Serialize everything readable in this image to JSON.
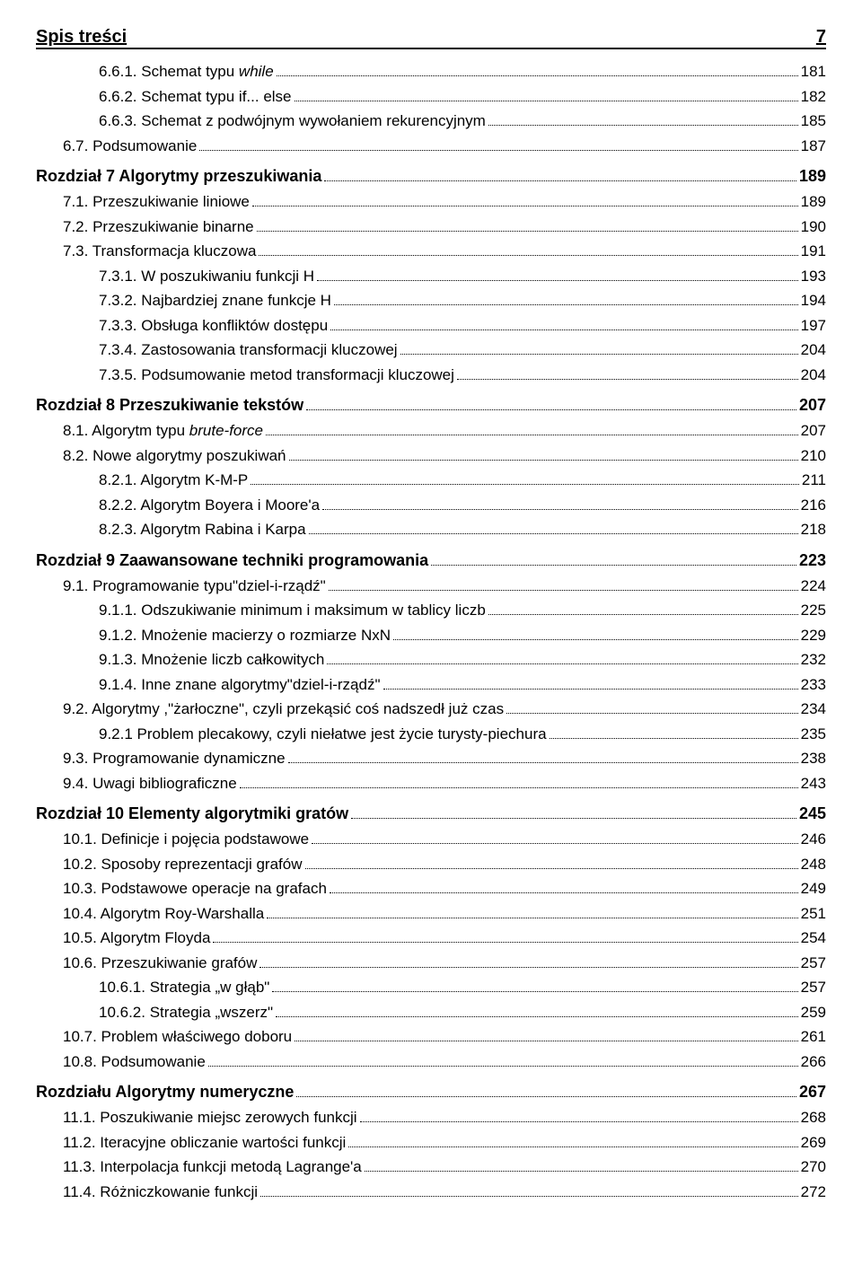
{
  "header": {
    "title": "Spis treści",
    "page": "7"
  },
  "lines": [
    {
      "indent": 1,
      "label": "6.6.1. Schemat typu <i>while</i>",
      "page": "181"
    },
    {
      "indent": 1,
      "label": "6.6.2. Schemat typu if... else",
      "page": "182"
    },
    {
      "indent": 1,
      "label": "6.6.3. Schemat z podwójnym wywołaniem rekurencyjnym",
      "page": "185"
    },
    {
      "indent": 0,
      "label": "6.7. Podsumowanie",
      "page": "187",
      "cls": "section-1"
    },
    {
      "indent": 0,
      "label": "Rozdział 7   Algorytmy przeszukiwania",
      "page": "189",
      "cls": "chapter"
    },
    {
      "indent": 0,
      "label": "7.1. Przeszukiwanie liniowe",
      "page": "189",
      "cls": "section-1"
    },
    {
      "indent": 0,
      "label": "7.2. Przeszukiwanie binarne",
      "page": "190",
      "cls": "section-1"
    },
    {
      "indent": 0,
      "label": "7.3. Transformacja kluczowa",
      "page": "191",
      "cls": "section-1"
    },
    {
      "indent": 1,
      "label": "7.3.1. W poszukiwaniu funkcji H",
      "page": "193"
    },
    {
      "indent": 1,
      "label": "7.3.2. Najbardziej znane funkcje H",
      "page": "194"
    },
    {
      "indent": 1,
      "label": "7.3.3. Obsługa konfliktów dostępu",
      "page": "197"
    },
    {
      "indent": 1,
      "label": "7.3.4. Zastosowania transformacji kluczowej",
      "page": "204"
    },
    {
      "indent": 1,
      "label": "7.3.5. Podsumowanie metod transformacji kluczowej",
      "page": "204"
    },
    {
      "indent": 0,
      "label": "Rozdział 8   Przeszukiwanie tekstów",
      "page": "207",
      "cls": "chapter"
    },
    {
      "indent": 0,
      "label": "8.1. Algorytm typu <i>brute-force</i>",
      "page": "207",
      "cls": "section-1"
    },
    {
      "indent": 0,
      "label": "8.2. Nowe algorytmy poszukiwań",
      "page": "210",
      "cls": "section-1"
    },
    {
      "indent": 1,
      "label": "8.2.1. Algorytm K-M-P",
      "page": "211"
    },
    {
      "indent": 1,
      "label": "8.2.2. Algorytm Boyera i Moore'a",
      "page": "216"
    },
    {
      "indent": 1,
      "label": "8.2.3. Algorytm Rabina i Karpa",
      "page": "218"
    },
    {
      "indent": 0,
      "label": "Rozdział 9 Zaawansowane techniki programowania",
      "page": "223",
      "cls": "chapter"
    },
    {
      "indent": 0,
      "label": "9.1. Programowanie typu\"dziel-i-rządź\"",
      "page": " 224",
      "cls": "section-1"
    },
    {
      "indent": 1,
      "label": "9.1.1. Odszukiwanie minimum i maksimum w tablicy liczb",
      "page": "225"
    },
    {
      "indent": 1,
      "label": "9.1.2. Mnożenie macierzy o rozmiarze NxN",
      "page": " 229"
    },
    {
      "indent": 1,
      "label": "9.1.3. Mnożenie liczb całkowitych",
      "page": "232"
    },
    {
      "indent": 1,
      "label": "9.1.4. Inne znane algorytmy\"dziel-i-rządź\"",
      "page": " 233"
    },
    {
      "indent": 0,
      "label": "9.2. Algorytmy ,\"żarłoczne\", czyli przekąsić coś nadszedł już czas",
      "page": "234",
      "cls": "section-1"
    },
    {
      "indent": 1,
      "label": "9.2.1 Problem plecakowy, czyli niełatwe jest życie turysty-piechura",
      "page": "235"
    },
    {
      "indent": 0,
      "label": "9.3. Programowanie dynamiczne",
      "page": "238",
      "cls": "section-1"
    },
    {
      "indent": 0,
      "label": "9.4. Uwagi bibliograficzne",
      "page": "243",
      "cls": "section-1"
    },
    {
      "indent": 0,
      "label": "Rozdział 10   Elementy algorytmiki gratów",
      "page": "245",
      "cls": "chapter"
    },
    {
      "indent": 0,
      "label": "10.1. Definicje i pojęcia podstawowe",
      "page": "246",
      "cls": "section-1"
    },
    {
      "indent": 0,
      "label": "10.2. Sposoby reprezentacji grafów",
      "page": "248",
      "cls": "section-1"
    },
    {
      "indent": 0,
      "label": "10.3. Podstawowe operacje na grafach",
      "page": "249",
      "cls": "section-1"
    },
    {
      "indent": 0,
      "label": "10.4. Algorytm Roy-Warshalla",
      "page": "251",
      "cls": "section-1"
    },
    {
      "indent": 0,
      "label": "10.5. Algorytm Floyda",
      "page": "254",
      "cls": "section-1"
    },
    {
      "indent": 0,
      "label": "10.6. Przeszukiwanie grafów",
      "page": "257",
      "cls": "section-1"
    },
    {
      "indent": 1,
      "label": "10.6.1. Strategia „w głąb\"",
      "page": "257"
    },
    {
      "indent": 1,
      "label": "10.6.2. Strategia „wszerz\"",
      "page": "259"
    },
    {
      "indent": 0,
      "label": "10.7. Problem właściwego doboru",
      "page": " 261",
      "cls": "section-1"
    },
    {
      "indent": 0,
      "label": "10.8. Podsumowanie",
      "page": "266",
      "cls": "section-1"
    },
    {
      "indent": 0,
      "label": "Rozdziału   Algorytmy numeryczne",
      "page": "267",
      "cls": "chapter"
    },
    {
      "indent": 0,
      "label": "11.1. Poszukiwanie miejsc zerowych funkcji",
      "page": "268",
      "cls": "section-1"
    },
    {
      "indent": 0,
      "label": "11.2. Iteracyjne obliczanie wartości funkcji",
      "page": "269",
      "cls": "section-1"
    },
    {
      "indent": 0,
      "label": "11.3. Interpolacja funkcji metodą Lagrange'a",
      "page": "270",
      "cls": "section-1"
    },
    {
      "indent": 0,
      "label": "11.4. Różniczkowanie funkcji",
      "page": " 272",
      "cls": "section-1"
    }
  ]
}
